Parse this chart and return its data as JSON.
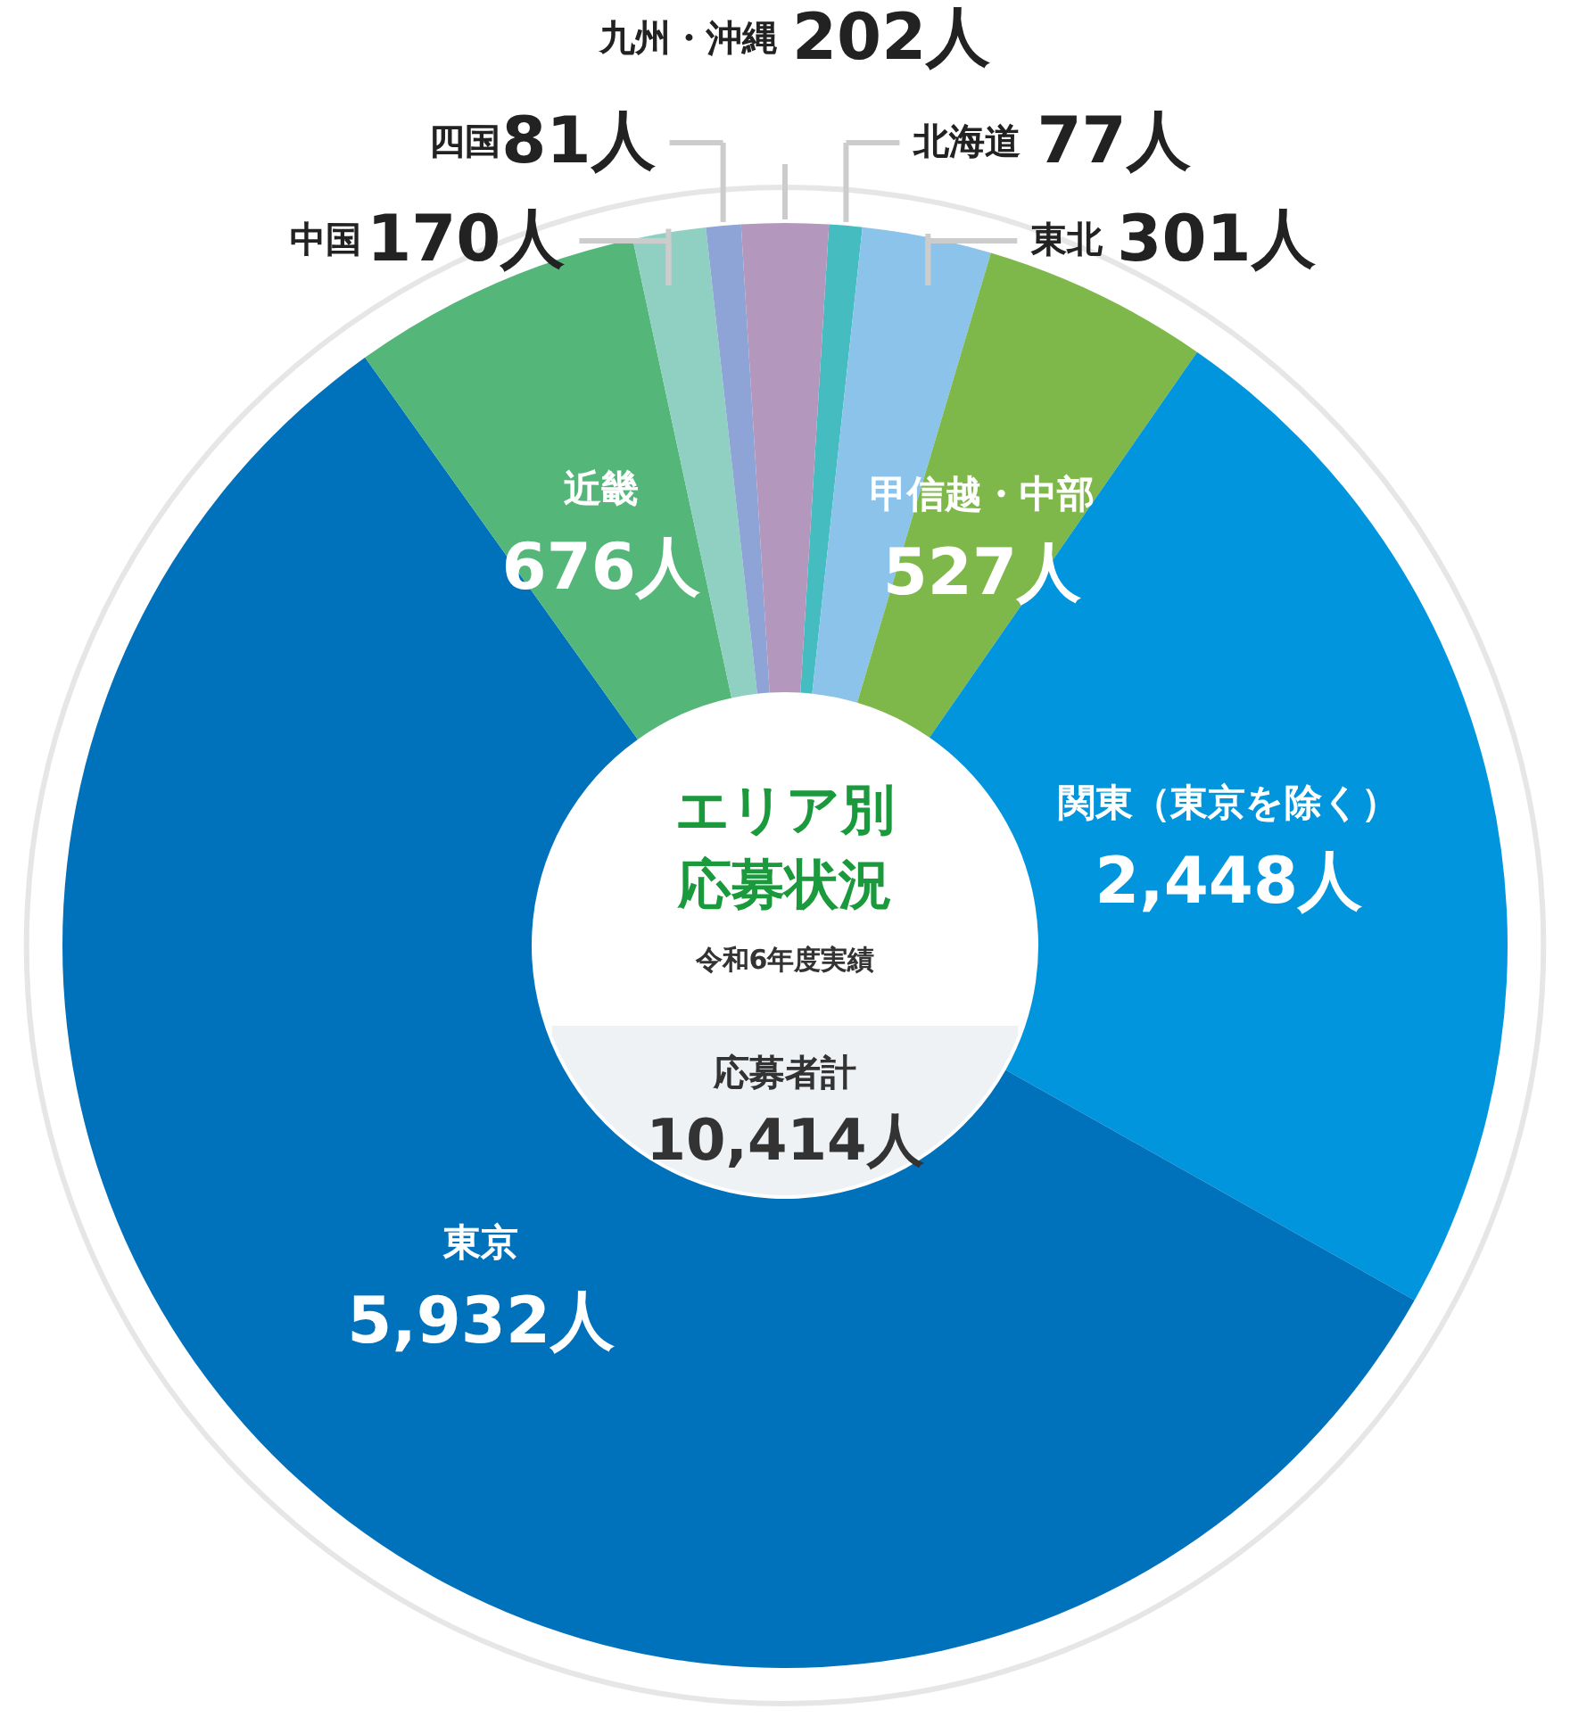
{
  "chart_data": {
    "type": "donut",
    "title": "エリア別応募状況",
    "subtitle": "令和6年度実績",
    "annotations": [
      "応募者計",
      "10,414人"
    ],
    "categories": [
      "北海道",
      "東北",
      "甲信越・中部",
      "関東（東京を除く）",
      "東京",
      "近畿",
      "中国",
      "四国",
      "九州・沖縄"
    ],
    "values": [
      77,
      301,
      527,
      2448,
      5932,
      676,
      170,
      81,
      202
    ],
    "value_labels": [
      "77人",
      "301人",
      "527人",
      "2,448人",
      "5,932人",
      "676人",
      "170人",
      "81人",
      "202人"
    ],
    "colors": [
      "#45bcc0",
      "#8cc3ea",
      "#7fb84a",
      "#0095dc",
      "#0071bb",
      "#55b67a",
      "#8fd0c3",
      "#8ea3d6",
      "#b497bd"
    ]
  }
}
